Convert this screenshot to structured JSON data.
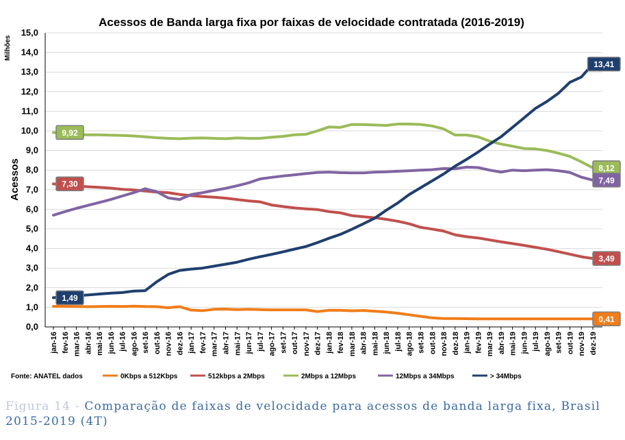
{
  "chart_data": {
    "type": "line",
    "title": "Acessos de Banda larga fixa por faixas de velocidade contratada (2016-2019)",
    "ylabel": "Acessos",
    "yunit": "Milhões",
    "ylim": [
      0,
      15
    ],
    "yticks": [
      "0,0",
      "1,0",
      "2,0",
      "3,0",
      "4,0",
      "5,0",
      "6,0",
      "7,0",
      "8,0",
      "9,0",
      "10,0",
      "11,0",
      "12,0",
      "13,0",
      "14,0",
      "15,0"
    ],
    "grid": true,
    "legend_position": "bottom",
    "source": "Fonte:  ANATEL dados",
    "categories": [
      "jan-16",
      "fev-16",
      "mar-16",
      "abr-16",
      "mai-16",
      "jun-16",
      "jul-16",
      "ago-16",
      "set-16",
      "out-16",
      "nov-16",
      "dez-16",
      "jan-17",
      "fev-17",
      "mar-17",
      "abr-17",
      "mai-17",
      "jun-17",
      "jul-17",
      "ago-17",
      "set-17",
      "out-17",
      "nov-17",
      "dez-17",
      "jan-18",
      "fev-18",
      "mar-18",
      "abr-18",
      "mai-18",
      "jun-18",
      "jul-18",
      "ago-18",
      "set-18",
      "out-18",
      "nov-18",
      "dez-18",
      "jan-19",
      "fev-19",
      "mar-19",
      "abr-19",
      "mai-19",
      "jun-19",
      "jul-19",
      "ago-19",
      "set-19",
      "out-19",
      "nov-19",
      "dez-19"
    ],
    "series": [
      {
        "name": "0Kbps a 512Kbps",
        "color": "#f07d1a",
        "values": [
          1.05,
          1.05,
          1.04,
          1.03,
          1.04,
          1.05,
          1.04,
          1.06,
          1.04,
          1.03,
          0.98,
          1.03,
          0.86,
          0.83,
          0.9,
          0.91,
          0.88,
          0.9,
          0.88,
          0.87,
          0.87,
          0.87,
          0.87,
          0.78,
          0.85,
          0.85,
          0.82,
          0.84,
          0.8,
          0.76,
          0.7,
          0.62,
          0.54,
          0.46,
          0.43,
          0.43,
          0.42,
          0.41,
          0.41,
          0.41,
          0.41,
          0.41,
          0.41,
          0.41,
          0.41,
          0.41,
          0.41,
          0.41
        ],
        "end_label": "0,41"
      },
      {
        "name": "512kbps a 2Mbps",
        "color": "#c0504d",
        "values": [
          7.3,
          7.25,
          7.2,
          7.15,
          7.12,
          7.08,
          7.02,
          6.99,
          6.93,
          6.88,
          6.85,
          6.76,
          6.7,
          6.65,
          6.62,
          6.57,
          6.5,
          6.43,
          6.38,
          6.22,
          6.14,
          6.07,
          6.02,
          5.99,
          5.88,
          5.82,
          5.68,
          5.62,
          5.57,
          5.49,
          5.39,
          5.26,
          5.08,
          4.99,
          4.89,
          4.7,
          4.6,
          4.54,
          4.44,
          4.34,
          4.25,
          4.16,
          4.06,
          3.96,
          3.84,
          3.71,
          3.58,
          3.49
        ],
        "start_label": "7,30",
        "end_label": "3,49"
      },
      {
        "name": "2Mbps a 12Mbps",
        "color": "#9bbb59",
        "values": [
          9.92,
          9.85,
          9.82,
          9.8,
          9.8,
          9.78,
          9.77,
          9.74,
          9.7,
          9.65,
          9.62,
          9.6,
          9.63,
          9.64,
          9.62,
          9.6,
          9.64,
          9.62,
          9.62,
          9.68,
          9.72,
          9.8,
          9.83,
          10.0,
          10.2,
          10.18,
          10.33,
          10.32,
          10.3,
          10.28,
          10.35,
          10.35,
          10.33,
          10.25,
          10.1,
          9.79,
          9.79,
          9.7,
          9.48,
          9.33,
          9.22,
          9.1,
          9.08,
          9.0,
          8.86,
          8.7,
          8.42,
          8.12
        ],
        "start_label": "9,92",
        "end_label": "8,12"
      },
      {
        "name": "12Mbps a 34Mbps",
        "color": "#8064a2",
        "values": [
          5.7,
          5.88,
          6.05,
          6.2,
          6.35,
          6.5,
          6.68,
          6.85,
          7.05,
          6.9,
          6.58,
          6.5,
          6.75,
          6.85,
          6.96,
          7.07,
          7.2,
          7.35,
          7.55,
          7.63,
          7.7,
          7.76,
          7.82,
          7.88,
          7.9,
          7.87,
          7.86,
          7.86,
          7.9,
          7.91,
          7.94,
          7.97,
          8.0,
          8.02,
          8.08,
          8.07,
          8.15,
          8.13,
          8.0,
          7.9,
          8.0,
          7.97,
          8.0,
          8.02,
          7.97,
          7.88,
          7.64,
          7.49
        ],
        "end_label": "7,49"
      },
      {
        "name": "> 34Mbps",
        "color": "#1f3f6e",
        "values": [
          1.49,
          1.54,
          1.58,
          1.63,
          1.68,
          1.72,
          1.75,
          1.83,
          1.85,
          2.3,
          2.68,
          2.88,
          2.95,
          3.0,
          3.1,
          3.2,
          3.3,
          3.45,
          3.58,
          3.7,
          3.83,
          3.97,
          4.1,
          4.3,
          4.52,
          4.72,
          4.98,
          5.26,
          5.55,
          5.95,
          6.32,
          6.75,
          7.1,
          7.45,
          7.8,
          8.2,
          8.55,
          8.92,
          9.32,
          9.7,
          10.18,
          10.66,
          11.15,
          11.5,
          11.92,
          12.48,
          12.75,
          13.41
        ],
        "start_label": "1,49",
        "end_label": "13,41"
      }
    ]
  },
  "caption": {
    "prefix": "Figura 14 -",
    "text": " Comparação de faixas de velocidade para acessos de banda larga fixa, Brasil 2015-2019 (4T)"
  }
}
